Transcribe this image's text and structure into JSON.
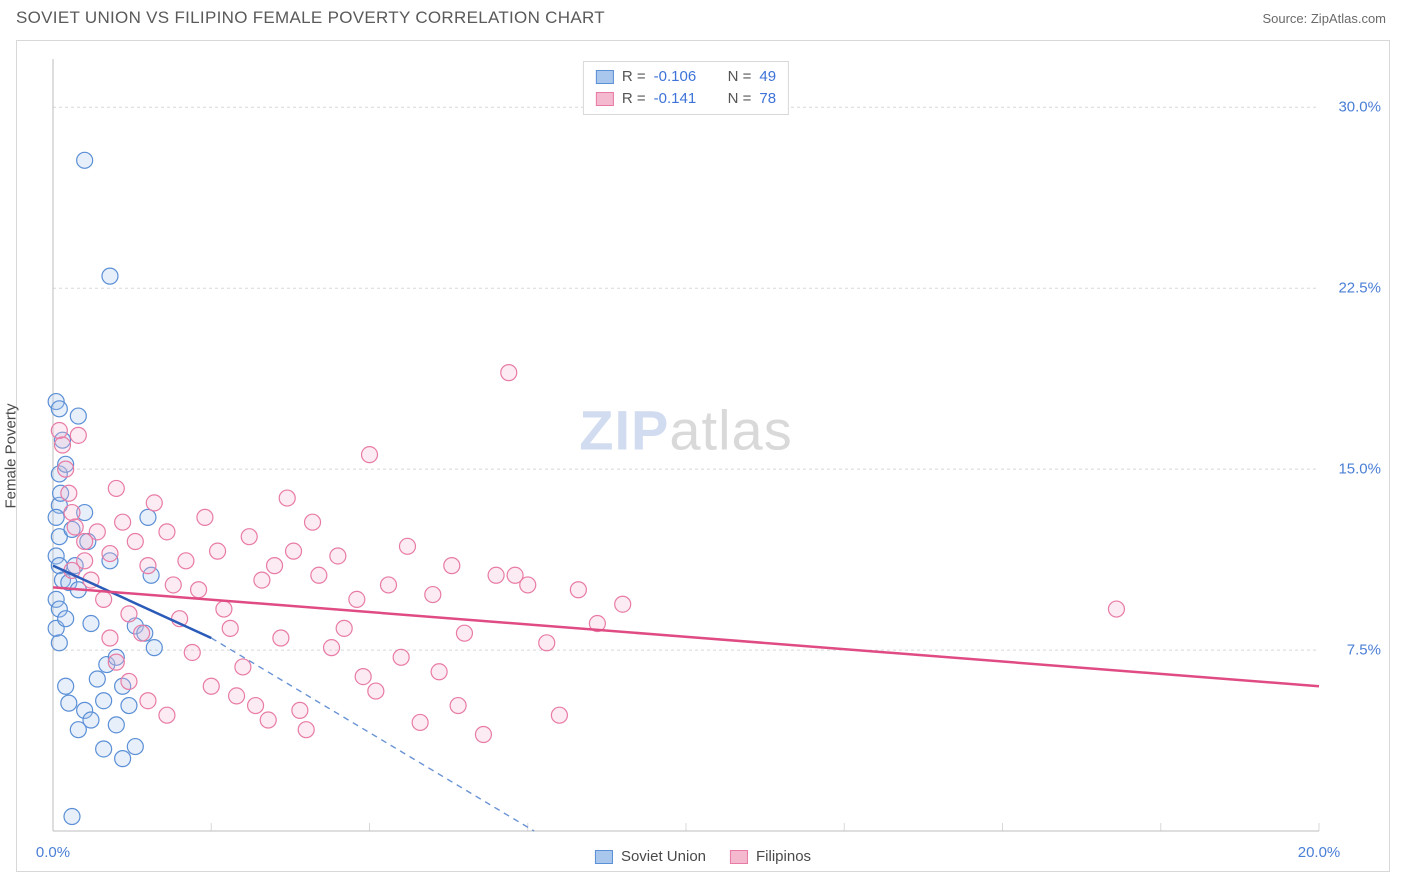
{
  "header": {
    "title": "SOVIET UNION VS FILIPINO FEMALE POVERTY CORRELATION CHART",
    "source": "Source: ZipAtlas.com"
  },
  "chart": {
    "type": "scatter",
    "ylabel": "Female Poverty",
    "xlim": [
      0,
      20
    ],
    "ylim": [
      0,
      32
    ],
    "xticks": [
      0,
      2.5,
      5,
      7.5,
      10,
      12.5,
      15,
      17.5,
      20
    ],
    "xtick_labels_shown": {
      "0": "0.0%",
      "20": "20.0%"
    },
    "yticks": [
      7.5,
      15,
      22.5,
      30
    ],
    "ytick_labels": [
      "7.5%",
      "15.0%",
      "22.5%",
      "30.0%"
    ],
    "grid_color": "#d8d8d8",
    "grid_dash": "3,3",
    "background_color": "#ffffff",
    "marker_radius": 8,
    "marker_stroke_width": 1.2,
    "marker_fill_opacity": 0.28,
    "watermark": {
      "a": "ZIP",
      "b": "atlas"
    },
    "series": [
      {
        "name": "Soviet Union",
        "color_stroke": "#5b8fd6",
        "color_fill": "#a9c6ec",
        "R": "-0.106",
        "N": "49",
        "trend": {
          "x1": 0,
          "y1": 11.0,
          "x2": 2.5,
          "y2": 8.0,
          "dash_ext_x": 7.6,
          "dash_ext_y": 0
        },
        "points": [
          [
            0.05,
            17.8
          ],
          [
            0.1,
            17.5
          ],
          [
            0.1,
            14.8
          ],
          [
            0.1,
            13.5
          ],
          [
            0.05,
            13.0
          ],
          [
            0.1,
            12.2
          ],
          [
            0.05,
            11.4
          ],
          [
            0.1,
            11.0
          ],
          [
            0.15,
            10.4
          ],
          [
            0.05,
            9.6
          ],
          [
            0.1,
            9.2
          ],
          [
            0.05,
            8.4
          ],
          [
            0.1,
            7.8
          ],
          [
            0.2,
            8.8
          ],
          [
            0.25,
            10.3
          ],
          [
            0.3,
            12.5
          ],
          [
            0.35,
            11.0
          ],
          [
            0.4,
            10.0
          ],
          [
            0.5,
            13.2
          ],
          [
            0.55,
            12.0
          ],
          [
            0.6,
            8.6
          ],
          [
            0.7,
            6.3
          ],
          [
            0.8,
            5.4
          ],
          [
            0.85,
            6.9
          ],
          [
            0.9,
            11.2
          ],
          [
            1.0,
            7.2
          ],
          [
            1.1,
            6.0
          ],
          [
            1.2,
            5.2
          ],
          [
            1.3,
            8.5
          ],
          [
            1.45,
            8.2
          ],
          [
            1.5,
            13.0
          ],
          [
            1.55,
            10.6
          ],
          [
            1.6,
            7.6
          ],
          [
            0.4,
            4.2
          ],
          [
            0.5,
            5.0
          ],
          [
            0.6,
            4.6
          ],
          [
            0.8,
            3.4
          ],
          [
            1.0,
            4.4
          ],
          [
            1.1,
            3.0
          ],
          [
            1.3,
            3.5
          ],
          [
            0.2,
            6.0
          ],
          [
            0.25,
            5.3
          ],
          [
            0.9,
            23.0
          ],
          [
            0.5,
            27.8
          ],
          [
            0.3,
            0.6
          ],
          [
            0.15,
            16.2
          ],
          [
            0.2,
            15.2
          ],
          [
            0.12,
            14.0
          ],
          [
            0.4,
            17.2
          ]
        ]
      },
      {
        "name": "Filipinos",
        "color_stroke": "#e87ba5",
        "color_fill": "#f4b8cf",
        "R": "-0.141",
        "N": "78",
        "trend": {
          "x1": 0,
          "y1": 10.1,
          "x2": 20,
          "y2": 6.0
        },
        "points": [
          [
            0.1,
            16.6
          ],
          [
            0.15,
            16.0
          ],
          [
            0.2,
            15.0
          ],
          [
            0.25,
            14.0
          ],
          [
            0.3,
            13.2
          ],
          [
            0.35,
            12.6
          ],
          [
            0.5,
            12.0
          ],
          [
            0.7,
            12.4
          ],
          [
            0.9,
            11.5
          ],
          [
            1.1,
            12.8
          ],
          [
            1.3,
            12.0
          ],
          [
            1.5,
            11.0
          ],
          [
            1.6,
            13.6
          ],
          [
            1.8,
            12.4
          ],
          [
            1.9,
            10.2
          ],
          [
            2.1,
            11.2
          ],
          [
            2.3,
            10.0
          ],
          [
            2.4,
            13.0
          ],
          [
            2.6,
            11.6
          ],
          [
            2.7,
            9.2
          ],
          [
            2.9,
            5.6
          ],
          [
            3.1,
            12.2
          ],
          [
            3.3,
            10.4
          ],
          [
            3.5,
            11.0
          ],
          [
            3.6,
            8.0
          ],
          [
            3.7,
            13.8
          ],
          [
            3.9,
            5.0
          ],
          [
            4.0,
            4.2
          ],
          [
            4.2,
            10.6
          ],
          [
            4.4,
            7.6
          ],
          [
            4.6,
            8.4
          ],
          [
            4.8,
            9.6
          ],
          [
            5.0,
            15.6
          ],
          [
            5.1,
            5.8
          ],
          [
            5.3,
            10.2
          ],
          [
            5.5,
            7.2
          ],
          [
            5.8,
            4.5
          ],
          [
            6.0,
            9.8
          ],
          [
            6.1,
            6.6
          ],
          [
            6.3,
            11.0
          ],
          [
            6.5,
            8.2
          ],
          [
            6.8,
            4.0
          ],
          [
            7.0,
            10.6
          ],
          [
            7.2,
            19.0
          ],
          [
            7.3,
            10.6
          ],
          [
            7.5,
            10.2
          ],
          [
            7.8,
            7.8
          ],
          [
            8.0,
            4.8
          ],
          [
            8.3,
            10.0
          ],
          [
            8.6,
            8.6
          ],
          [
            9.0,
            9.4
          ],
          [
            16.8,
            9.2
          ],
          [
            1.2,
            9.0
          ],
          [
            1.4,
            8.2
          ],
          [
            0.6,
            10.4
          ],
          [
            0.8,
            9.6
          ],
          [
            0.9,
            8.0
          ],
          [
            1.0,
            7.0
          ],
          [
            1.2,
            6.2
          ],
          [
            1.5,
            5.4
          ],
          [
            1.8,
            4.8
          ],
          [
            2.0,
            8.8
          ],
          [
            2.2,
            7.4
          ],
          [
            2.5,
            6.0
          ],
          [
            2.8,
            8.4
          ],
          [
            3.0,
            6.8
          ],
          [
            3.2,
            5.2
          ],
          [
            3.4,
            4.6
          ],
          [
            3.8,
            11.6
          ],
          [
            4.1,
            12.8
          ],
          [
            4.5,
            11.4
          ],
          [
            4.9,
            6.4
          ],
          [
            5.6,
            11.8
          ],
          [
            6.4,
            5.2
          ],
          [
            0.4,
            16.4
          ],
          [
            0.5,
            11.2
          ],
          [
            1.0,
            14.2
          ],
          [
            0.3,
            10.8
          ]
        ]
      }
    ],
    "legend_bottom": [
      {
        "label": "Soviet Union",
        "stroke": "#5b8fd6",
        "fill": "#a9c6ec"
      },
      {
        "label": "Filipinos",
        "stroke": "#e87ba5",
        "fill": "#f4b8cf"
      }
    ]
  }
}
